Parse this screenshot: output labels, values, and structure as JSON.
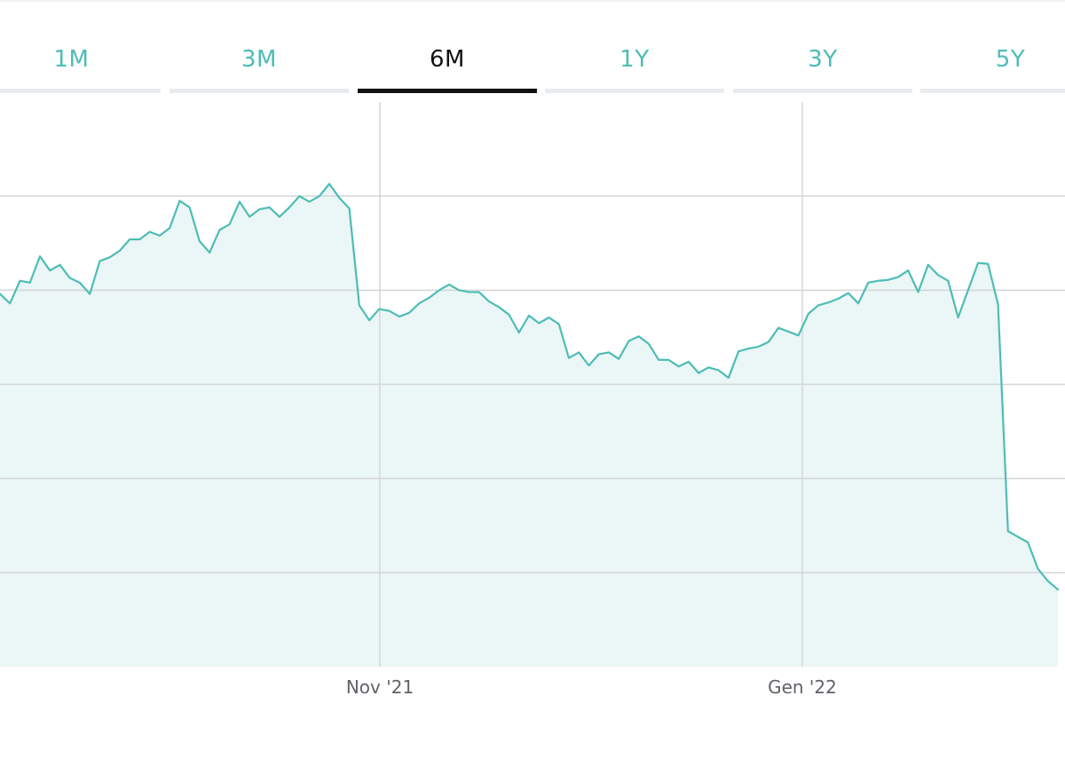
{
  "tabs": [
    {
      "label": "1M",
      "active": false
    },
    {
      "label": "3M",
      "active": false
    },
    {
      "label": "6M",
      "active": true
    },
    {
      "label": "1Y",
      "active": false
    },
    {
      "label": "3Y",
      "active": false
    },
    {
      "label": "5Y",
      "active": false
    }
  ],
  "colors": {
    "accent": "#4dbdb5",
    "active_text": "#111111",
    "active_underline": "#111111",
    "inactive_underline": "#e8ecef",
    "grid": "#d3d6d9",
    "fill": "#ebf6f6"
  },
  "chart_data": {
    "type": "area",
    "x_ticks": [
      "Nov '21",
      "Gen '22"
    ],
    "ylim": [
      0,
      6
    ],
    "grid": true,
    "y_gridlines": [
      1,
      2,
      3,
      4,
      5
    ],
    "series": [
      {
        "values": [
          3.96,
          3.86,
          4.1,
          4.08,
          4.36,
          4.21,
          4.27,
          4.13,
          4.08,
          3.96,
          4.31,
          4.35,
          4.42,
          4.54,
          4.54,
          4.62,
          4.58,
          4.66,
          4.95,
          4.88,
          4.52,
          4.4,
          4.64,
          4.7,
          4.94,
          4.78,
          4.86,
          4.88,
          4.78,
          4.88,
          5.0,
          4.94,
          5.0,
          5.13,
          4.98,
          4.87,
          3.84,
          3.68,
          3.8,
          3.78,
          3.72,
          3.76,
          3.86,
          3.92,
          4.0,
          4.06,
          4.0,
          3.98,
          3.98,
          3.88,
          3.82,
          3.74,
          3.55,
          3.73,
          3.65,
          3.71,
          3.64,
          3.28,
          3.34,
          3.2,
          3.32,
          3.34,
          3.27,
          3.46,
          3.51,
          3.43,
          3.26,
          3.26,
          3.19,
          3.24,
          3.12,
          3.18,
          3.15,
          3.07,
          3.35,
          3.38,
          3.4,
          3.45,
          3.6,
          3.56,
          3.52,
          3.75,
          3.84,
          3.87,
          3.91,
          3.97,
          3.86,
          4.08,
          4.1,
          4.11,
          4.14,
          4.21,
          3.98,
          4.27,
          4.16,
          4.1,
          3.71,
          4.0,
          4.29,
          4.28,
          3.85,
          1.44,
          1.38,
          1.32,
          1.04,
          0.91,
          0.82
        ]
      }
    ]
  }
}
